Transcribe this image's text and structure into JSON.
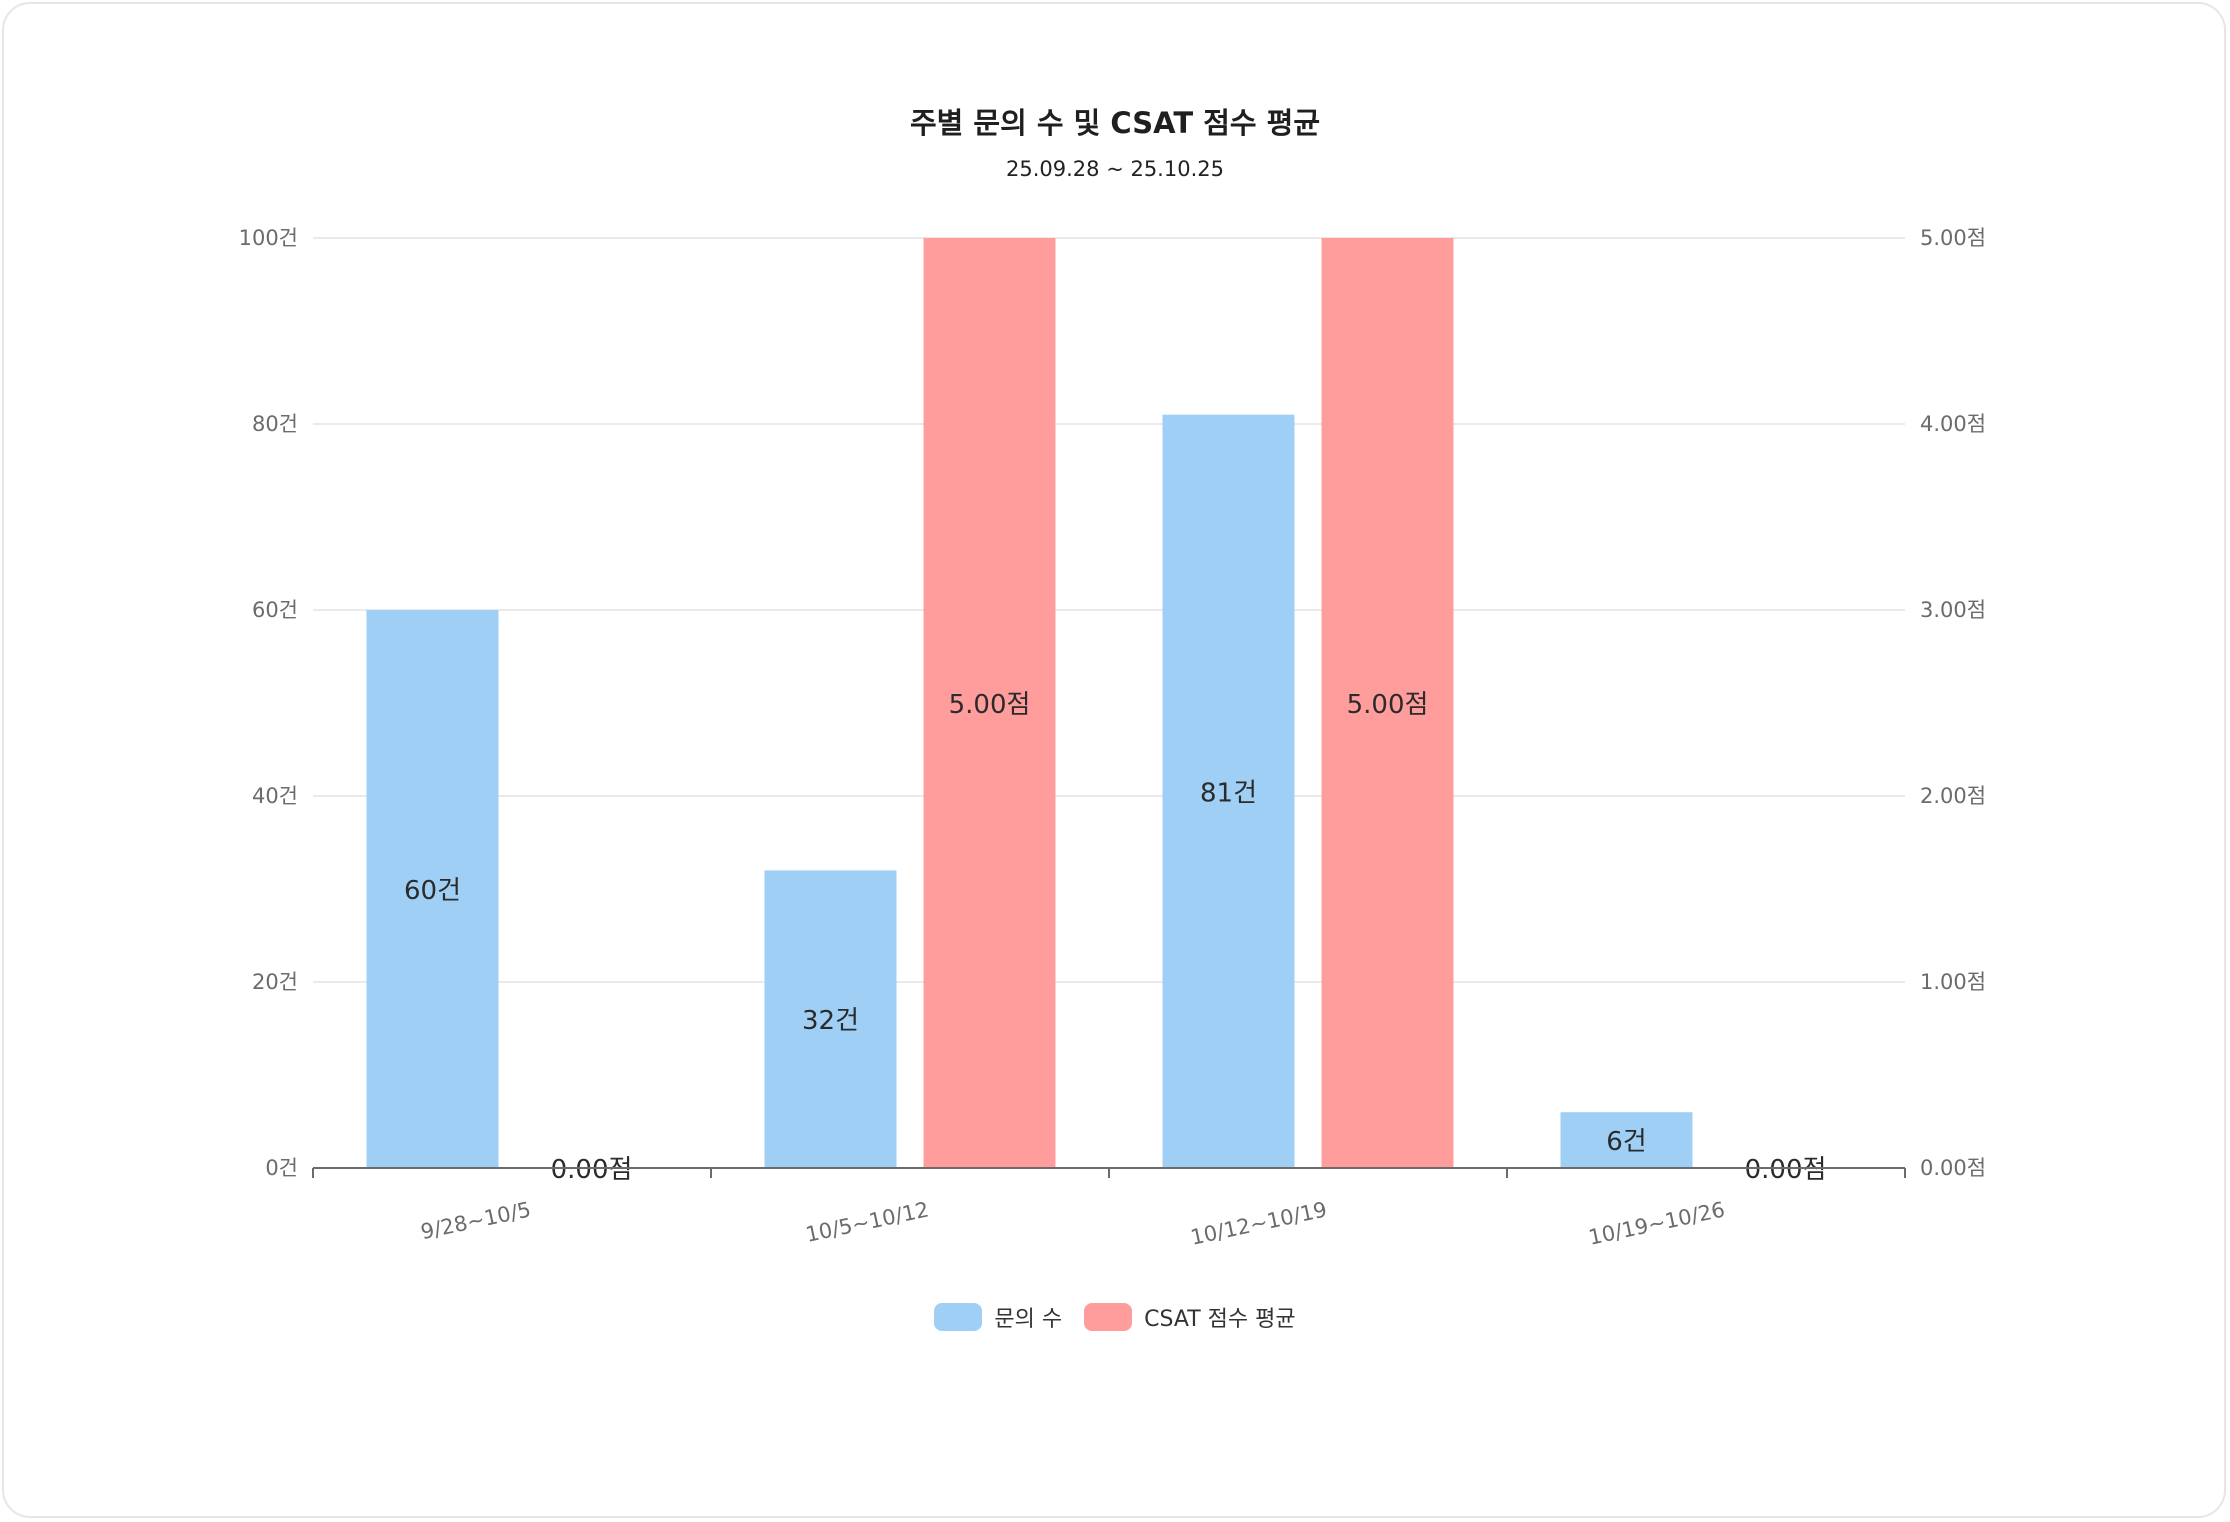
{
  "chart_data": {
    "type": "bar",
    "title": "주별 문의 수 및 CSAT 점수 평균",
    "subtitle": "25.09.28 ~ 25.10.25",
    "categories": [
      "9/28~10/5",
      "10/5~10/12",
      "10/12~10/19",
      "10/19~10/26"
    ],
    "series": [
      {
        "name": "문의 수",
        "axis": "left",
        "values": [
          60,
          32,
          81,
          6
        ],
        "labels": [
          "60건",
          "32건",
          "81건",
          "6건"
        ],
        "color": "#9fcff5"
      },
      {
        "name": "CSAT 점수 평균",
        "axis": "right",
        "values": [
          0,
          5,
          5,
          0
        ],
        "labels": [
          "0.00점",
          "5.00점",
          "5.00점",
          "0.00점"
        ],
        "color": "#ff9d9d"
      }
    ],
    "y_left": {
      "ylim": [
        0,
        100
      ],
      "ticks": [
        0,
        20,
        40,
        60,
        80,
        100
      ],
      "tick_labels": [
        "0건",
        "20건",
        "40건",
        "60건",
        "80건",
        "100건"
      ]
    },
    "y_right": {
      "ylim": [
        0,
        5
      ],
      "ticks": [
        0,
        1,
        2,
        3,
        4,
        5
      ],
      "tick_labels": [
        "0.00점",
        "1.00점",
        "2.00점",
        "3.00점",
        "4.00점",
        "5.00점"
      ]
    },
    "grid": true,
    "legend": "bottom-center",
    "colors": {
      "grid": "#e3e3e3",
      "axis": "#6b6b6b"
    }
  }
}
